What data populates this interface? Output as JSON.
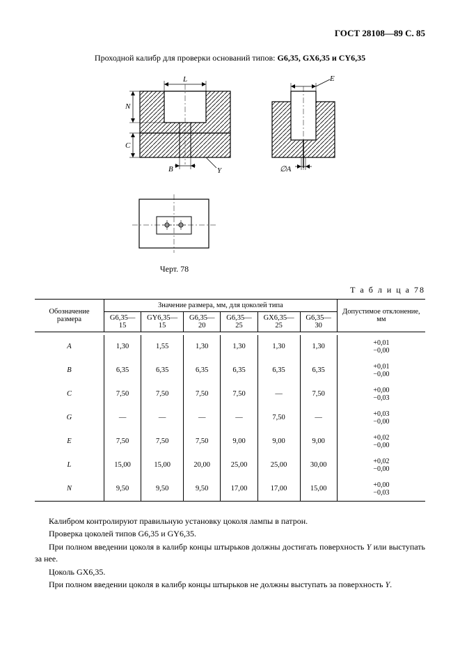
{
  "header": "ГОСТ 28108—89 С. 85",
  "title_prefix": "Проходной калибр для проверки оснований типов: ",
  "title_bold": "G6,35, GX6,35 и CY6,35",
  "figure_label": "Черт. 78",
  "table_caption": "Т а б л и ц а  78",
  "table": {
    "header_col1": "Обозначение размера",
    "header_span": "Значение размера, мм, для цоколей типа",
    "header_col_last": "Допустимое отклонение, мм",
    "type_columns": [
      "G6,35—15",
      "GY6,35—15",
      "G6,35—20",
      "G6,35—25",
      "GX6,35—25",
      "G6,35—30"
    ],
    "rows": [
      {
        "label": "A",
        "values": [
          "1,30",
          "1,55",
          "1,30",
          "1,30",
          "1,30",
          "1,30"
        ],
        "tol_plus": "+0,01",
        "tol_minus": "−0,00"
      },
      {
        "label": "B",
        "values": [
          "6,35",
          "6,35",
          "6,35",
          "6,35",
          "6,35",
          "6,35"
        ],
        "tol_plus": "+0,01",
        "tol_minus": "−0,00"
      },
      {
        "label": "C",
        "values": [
          "7,50",
          "7,50",
          "7,50",
          "7,50",
          "—",
          "7,50"
        ],
        "tol_plus": "+0,00",
        "tol_minus": "−0,03"
      },
      {
        "label": "G",
        "values": [
          "—",
          "—",
          "—",
          "—",
          "7,50",
          "—"
        ],
        "tol_plus": "+0,03",
        "tol_minus": "−0,00"
      },
      {
        "label": "E",
        "values": [
          "7,50",
          "7,50",
          "7,50",
          "9,00",
          "9,00",
          "9,00"
        ],
        "tol_plus": "+0,02",
        "tol_minus": "−0,00"
      },
      {
        "label": "L",
        "values": [
          "15,00",
          "15,00",
          "20,00",
          "25,00",
          "25,00",
          "30,00"
        ],
        "tol_plus": "+0,02",
        "tol_minus": "−0,00"
      },
      {
        "label": "N",
        "values": [
          "9,50",
          "9,50",
          "9,50",
          "17,00",
          "17,00",
          "15,00"
        ],
        "tol_plus": "+0,00",
        "tol_minus": "−0,03"
      }
    ]
  },
  "paragraphs": [
    "Калибром контролируют правильную установку цоколя лампы в патрон.",
    "Проверка цоколей типов G6,35 и GY6,35.",
    "При полном введении цоколя в калибр концы штырьков должны достигать поверхность Y или выступать за нее.",
    "Цоколь GX6,35.",
    "При полном введении цоколя в калибр концы штырьков не должны выступать за поверхность Y."
  ],
  "diagram": {
    "hatch_color": "#000000",
    "line_color": "#000000",
    "background": "#ffffff"
  }
}
